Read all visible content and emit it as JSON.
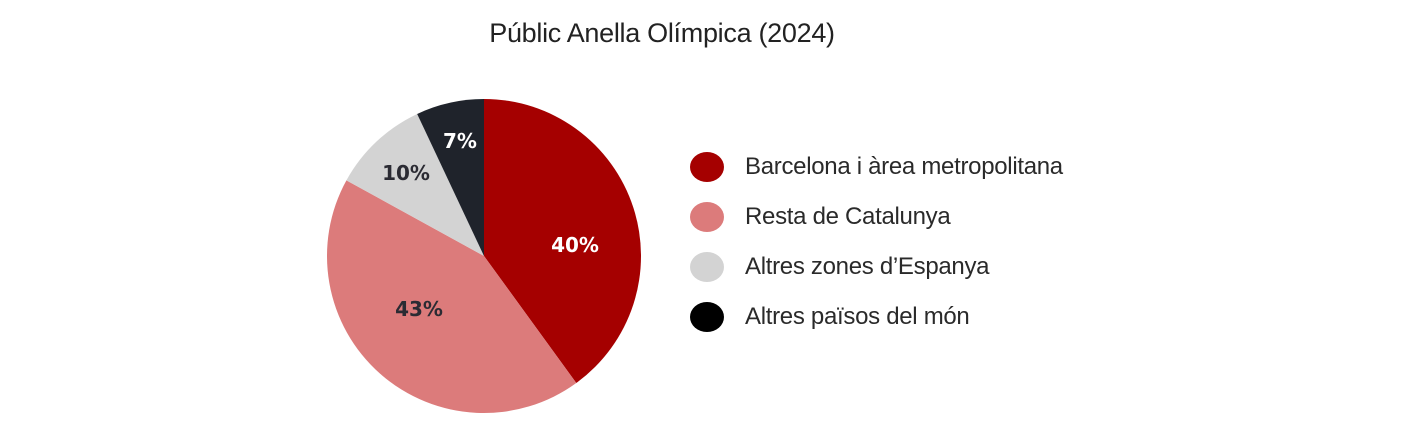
{
  "title": "Públic Anella Olímpica (2024)",
  "chart_data": {
    "type": "pie",
    "title": "Públic Anella Olímpica (2024)",
    "categories": [
      "Barcelona i àrea metropolitana",
      "Resta de Catalunya",
      "Altres zones d'Espanya",
      "Altres països del món"
    ],
    "values": [
      40,
      43,
      10,
      7
    ],
    "unit": "%",
    "colors": [
      "#a50000",
      "#dc7b7b",
      "#d3d3d3",
      "#1f232b"
    ],
    "data_labels": [
      "40%",
      "43%",
      "10%",
      "7%"
    ],
    "legend_position": "right",
    "start_angle": "12 o'clock, clockwise"
  },
  "legend": {
    "items": [
      {
        "label": "Barcelona i àrea metropolitana",
        "color": "#a50000"
      },
      {
        "label": "Resta de Catalunya",
        "color": "#dc7b7b"
      },
      {
        "label": "Altres zones d’Espanya",
        "color": "#d3d3d3"
      },
      {
        "label": "Altres països del món",
        "color": "#000000"
      }
    ]
  },
  "slice_labels": {
    "s0": "40%",
    "s1": "43%",
    "s2": "10%",
    "s3": "7%"
  }
}
